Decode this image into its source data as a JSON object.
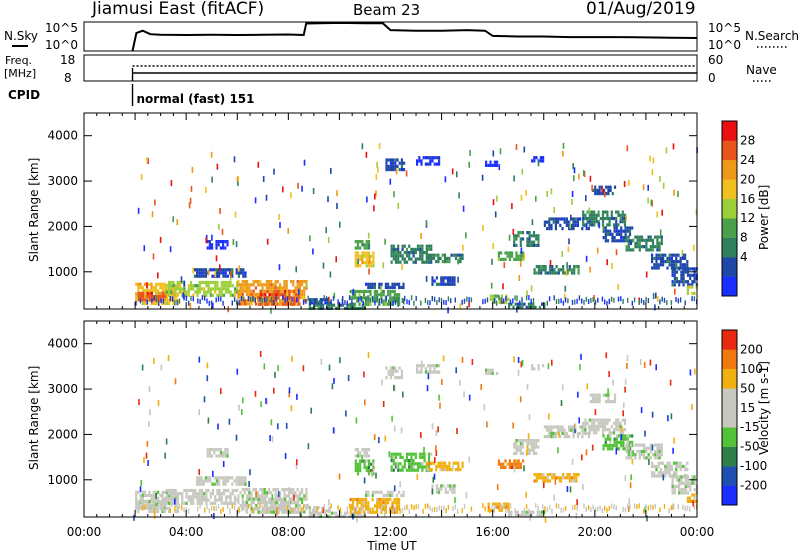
{
  "header": {
    "title": "Jiamusi East (fitACF)",
    "beam": "Beam 23",
    "date": "01/Aug/2019"
  },
  "status_labels": {
    "nsky": "N.Sky",
    "nsearch": "N.Search",
    "freq_line1": "Freq.",
    "freq_line2": "[MHz]",
    "nave": "Nave",
    "cpid": "CPID",
    "cpid_value": "normal (fast) 151"
  },
  "colors": {
    "power_scale": [
      "#1a2fff",
      "#1f47a8",
      "#2f7f5c",
      "#4aa04a",
      "#9ccf3a",
      "#f0c020",
      "#ee9a18",
      "#e8561c",
      "#e81010"
    ],
    "velocity_scale": [
      "#1a2fff",
      "#1f4fb0",
      "#2f7f4a",
      "#52c238",
      "#c8c8c0",
      "#c8c8c0",
      "#f0b010",
      "#f07a10",
      "#e82a10"
    ]
  },
  "chart_data": [
    {
      "type": "line",
      "title": "",
      "panel": "noise",
      "left_axis_ticks": [
        "10^5",
        "10^0"
      ],
      "right_axis_ticks": [
        "10^5",
        "10^0"
      ],
      "series": [
        {
          "name": "N.Sky",
          "x_hours": [
            1.9,
            2.05,
            2.3,
            2.6,
            3,
            4,
            5,
            6,
            7,
            8,
            8.6,
            8.7,
            10,
            11,
            11.7,
            12,
            13,
            14,
            15,
            15.7,
            16,
            17,
            18,
            19,
            20,
            21,
            22,
            23,
            24
          ],
          "values_fraction": [
            0.0,
            0.62,
            0.7,
            0.58,
            0.56,
            0.55,
            0.56,
            0.55,
            0.56,
            0.57,
            0.55,
            0.95,
            0.97,
            0.96,
            0.96,
            0.72,
            0.7,
            0.7,
            0.72,
            0.7,
            0.52,
            0.5,
            0.5,
            0.48,
            0.48,
            0.48,
            0.47,
            0.46,
            0.45
          ]
        }
      ]
    },
    {
      "type": "line",
      "panel": "frequency",
      "left_axis_ticks": [
        "18",
        "8"
      ],
      "right_axis_ticks": [
        "60",
        "0"
      ],
      "start_hour": 1.9
    },
    {
      "type": "heatmap",
      "panel": "power",
      "ylabel": "Slant Range [km]",
      "colorbar_label": "Power [dB]",
      "colorbar_ticks": [
        "28",
        "24",
        "20",
        "16",
        "12",
        "8",
        "4"
      ],
      "yticks": [
        "1000",
        "2000",
        "3000",
        "4000"
      ],
      "ylim": [
        180,
        4500
      ],
      "xlim": [
        0,
        24
      ]
    },
    {
      "type": "heatmap",
      "panel": "velocity",
      "ylabel": "Slant Range [km]",
      "colorbar_label": "Velocity [m s-1]",
      "colorbar_ticks": [
        "200",
        "100",
        "50",
        "15",
        "-15",
        "-50",
        "-100",
        "-200"
      ],
      "yticks": [
        "1000",
        "2000",
        "3000",
        "4000"
      ],
      "ylim": [
        180,
        4500
      ],
      "xlim": [
        0,
        24
      ],
      "xticks": [
        "00:00",
        "04:00",
        "08:00",
        "12:00",
        "16:00",
        "20:00",
        "00:00"
      ],
      "xlabel": "Time UT"
    }
  ],
  "blobs": [
    {
      "t0": 2.0,
      "t1": 3.7,
      "r0": 280,
      "r1": 760,
      "power": 5,
      "vel": 4
    },
    {
      "t0": 2.1,
      "t1": 3.2,
      "r0": 380,
      "r1": 560,
      "power": 7,
      "vel": 4
    },
    {
      "t0": 3.2,
      "t1": 6.0,
      "r0": 500,
      "r1": 800,
      "power": 4,
      "vel": 4
    },
    {
      "t0": 4.3,
      "t1": 6.3,
      "r0": 900,
      "r1": 1080,
      "power": 1,
      "vel": 4
    },
    {
      "t0": 6.0,
      "t1": 8.7,
      "r0": 260,
      "r1": 820,
      "power": 6,
      "vel": 4
    },
    {
      "t0": 6.8,
      "t1": 8.4,
      "r0": 300,
      "r1": 600,
      "power": 7,
      "vel": 4
    },
    {
      "t0": 4.8,
      "t1": 5.6,
      "r0": 1500,
      "r1": 1700,
      "power": 0,
      "vel": 4
    },
    {
      "t0": 8.8,
      "t1": 11.0,
      "r0": 190,
      "r1": 300,
      "power": 2,
      "vel": 4
    },
    {
      "t0": 10.4,
      "t1": 12.3,
      "r0": 300,
      "r1": 600,
      "power": 3,
      "vel": 6
    },
    {
      "t0": 11.0,
      "t1": 12.5,
      "r0": 620,
      "r1": 760,
      "power": 1,
      "vel": 4
    },
    {
      "t0": 10.6,
      "t1": 11.3,
      "r0": 1150,
      "r1": 1450,
      "power": 5,
      "vel": 3
    },
    {
      "t0": 10.6,
      "t1": 11.2,
      "r0": 1550,
      "r1": 1700,
      "power": 3,
      "vel": 4
    },
    {
      "t0": 12.0,
      "t1": 13.6,
      "r0": 1200,
      "r1": 1600,
      "power": 2,
      "vel": 3
    },
    {
      "t0": 13.4,
      "t1": 14.8,
      "r0": 1200,
      "r1": 1400,
      "power": 2,
      "vel": 6
    },
    {
      "t0": 13.6,
      "t1": 14.5,
      "r0": 700,
      "r1": 900,
      "power": 1,
      "vel": 4
    },
    {
      "t0": 11.8,
      "t1": 12.5,
      "r0": 3250,
      "r1": 3500,
      "power": 1,
      "vel": 4
    },
    {
      "t0": 13.0,
      "t1": 13.9,
      "r0": 3350,
      "r1": 3550,
      "power": 0,
      "vel": 4
    },
    {
      "t0": 15.8,
      "t1": 16.6,
      "r0": 300,
      "r1": 500,
      "power": 4,
      "vel": 6
    },
    {
      "t0": 16.6,
      "t1": 18.0,
      "r0": 190,
      "r1": 320,
      "power": 2,
      "vel": 4
    },
    {
      "t0": 16.2,
      "t1": 17.2,
      "r0": 1250,
      "r1": 1450,
      "power": 3,
      "vel": 7
    },
    {
      "t0": 16.8,
      "t1": 17.8,
      "r0": 1600,
      "r1": 1900,
      "power": 2,
      "vel": 4
    },
    {
      "t0": 17.6,
      "t1": 19.4,
      "r0": 1000,
      "r1": 1150,
      "power": 2,
      "vel": 6
    },
    {
      "t0": 18.0,
      "t1": 19.8,
      "r0": 1950,
      "r1": 2200,
      "power": 1,
      "vel": 4
    },
    {
      "t0": 19.5,
      "t1": 21.2,
      "r0": 2050,
      "r1": 2350,
      "power": 2,
      "vel": 4
    },
    {
      "t0": 20.3,
      "t1": 21.5,
      "r0": 1700,
      "r1": 2000,
      "power": 1,
      "vel": 3
    },
    {
      "t0": 21.2,
      "t1": 22.6,
      "r0": 1450,
      "r1": 1800,
      "power": 2,
      "vel": 4
    },
    {
      "t0": 22.2,
      "t1": 23.6,
      "r0": 1100,
      "r1": 1400,
      "power": 1,
      "vel": 4
    },
    {
      "t0": 23.0,
      "t1": 24.0,
      "r0": 700,
      "r1": 1100,
      "power": 1,
      "vel": 4
    },
    {
      "t0": 23.6,
      "t1": 24.0,
      "r0": 550,
      "r1": 700,
      "power": 4,
      "vel": 6
    },
    {
      "t0": 19.8,
      "t1": 20.8,
      "r0": 2700,
      "r1": 2900,
      "power": 1,
      "vel": 4
    },
    {
      "t0": 17.5,
      "t1": 18.0,
      "r0": 3450,
      "r1": 3550,
      "power": 0,
      "vel": 4
    },
    {
      "t0": 15.7,
      "t1": 16.2,
      "r0": 3350,
      "r1": 3450,
      "power": 0,
      "vel": 4
    },
    {
      "t0": 8.8,
      "t1": 9.6,
      "r0": 320,
      "r1": 420,
      "power": 1,
      "vel": 4
    }
  ],
  "sparse_seed": 23
}
